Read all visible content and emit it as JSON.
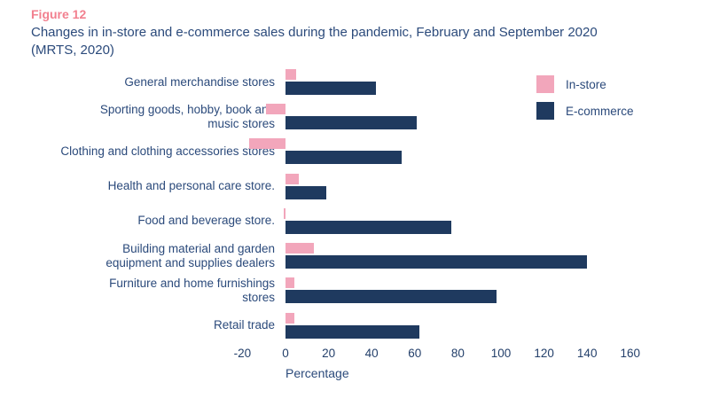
{
  "figure": {
    "label": "Figure 12",
    "title": "Changes in in-store and e-commerce sales during the pandemic, February and September 2020\n(MRTS, 2020)"
  },
  "chart_data": {
    "type": "bar",
    "orientation": "horizontal",
    "title": "Changes in in-store and e-commerce sales during the pandemic, February and September 2020 (MRTS, 2020)",
    "categories": [
      "General merchandise stores",
      "Sporting goods, hobby, book and\nmusic stores",
      "Clothing and clothing accessories stores",
      "Health and personal care store.",
      "Food and beverage store.",
      "Building material and garden\nequipment and supplies dealers",
      "Furniture and home furnishings\nstores",
      "Retail trade"
    ],
    "series": [
      {
        "name": "In-store",
        "color": "#f2a6bb",
        "values": [
          5,
          -9,
          -17,
          6,
          -1,
          13,
          4,
          4
        ]
      },
      {
        "name": "E-commerce",
        "color": "#1f3a5f",
        "values": [
          42,
          61,
          54,
          19,
          77,
          140,
          98,
          62
        ]
      }
    ],
    "xlabel": "Percentage",
    "xticks": [
      -20,
      0,
      20,
      40,
      60,
      80,
      100,
      120,
      140,
      160
    ],
    "xlim": [
      -20,
      160
    ],
    "grid": false,
    "legend_position": "top-right"
  },
  "colors": {
    "figure_label": "#f2808f",
    "text": "#2b4a7b",
    "in_store": "#f2a6bb",
    "e_commerce": "#1f3a5f",
    "background": "#ffffff"
  }
}
